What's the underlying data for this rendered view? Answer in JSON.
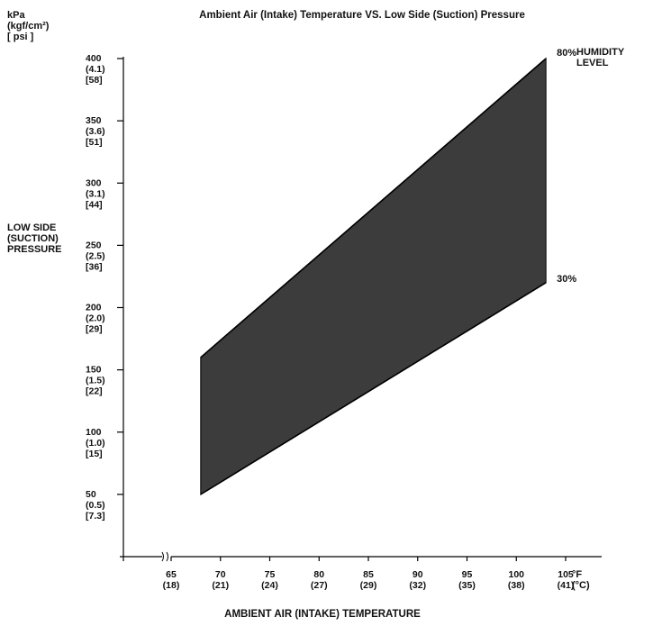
{
  "chart_data": {
    "type": "area",
    "title": "Ambient Air (Intake) Temperature VS. Low Side (Suction) Pressure",
    "y_unit_labels": [
      "kPa",
      "(kgf/cm²)",
      "[ psi ]"
    ],
    "ylabel_lines": [
      "LOW SIDE",
      "(SUCTION)",
      "PRESSURE"
    ],
    "xlabel": "AMBIENT AIR (INTAKE) TEMPERATURE",
    "x_unit_labels": [
      "°F",
      "(°C)"
    ],
    "legend_title_lines": [
      "HUMIDITY",
      "LEVEL"
    ],
    "xlim": [
      60,
      107
    ],
    "ylim": [
      0,
      400
    ],
    "y_ticks": [
      {
        "value": 400,
        "labels": [
          "400",
          "(4.1)",
          "[58]"
        ]
      },
      {
        "value": 350,
        "labels": [
          "350",
          "(3.6)",
          "[51]"
        ]
      },
      {
        "value": 300,
        "labels": [
          "300",
          "(3.1)",
          "[44]"
        ]
      },
      {
        "value": 250,
        "labels": [
          "250",
          "(2.5)",
          "[36]"
        ]
      },
      {
        "value": 200,
        "labels": [
          "200",
          "(2.0)",
          "[29]"
        ]
      },
      {
        "value": 150,
        "labels": [
          "150",
          "(1.5)",
          "[22]"
        ]
      },
      {
        "value": 100,
        "labels": [
          "100",
          "(1.0)",
          "[15]"
        ]
      },
      {
        "value": 50,
        "labels": [
          "50",
          "(0.5)",
          "[7.3]"
        ]
      }
    ],
    "x_ticks": [
      {
        "value": 65,
        "labels": [
          "65",
          "(18)"
        ]
      },
      {
        "value": 70,
        "labels": [
          "70",
          "(21)"
        ]
      },
      {
        "value": 75,
        "labels": [
          "75",
          "(24)"
        ]
      },
      {
        "value": 80,
        "labels": [
          "80",
          "(27)"
        ]
      },
      {
        "value": 85,
        "labels": [
          "85",
          "(29)"
        ]
      },
      {
        "value": 90,
        "labels": [
          "90",
          "(32)"
        ]
      },
      {
        "value": 95,
        "labels": [
          "95",
          "(35)"
        ]
      },
      {
        "value": 100,
        "labels": [
          "100",
          "(38)"
        ]
      },
      {
        "value": 105,
        "labels": [
          "105",
          "(41)"
        ]
      }
    ],
    "series": [
      {
        "name": "80%",
        "x": [
          68,
          103
        ],
        "y": [
          160,
          400
        ]
      },
      {
        "name": "30%",
        "x": [
          68,
          103
        ],
        "y": [
          50,
          220
        ]
      }
    ],
    "fill_color": "#3c3c3c",
    "axis_break": true
  }
}
